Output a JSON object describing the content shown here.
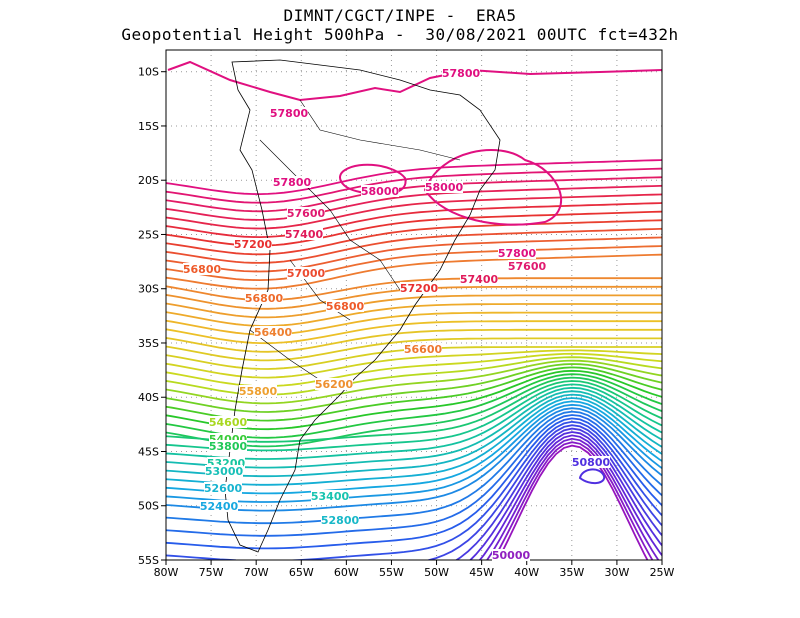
{
  "title": {
    "line1": "DIMNT/CGCT/INPE -  ERA5",
    "line2": "Geopotential Height 500hPa -  30/08/2021 00UTC fct=432h"
  },
  "axes": {
    "lon_ticks": [
      "80W",
      "75W",
      "70W",
      "65W",
      "60W",
      "55W",
      "50W",
      "45W",
      "40W",
      "35W",
      "30W",
      "25W"
    ],
    "lat_ticks": [
      "10S",
      "15S",
      "20S",
      "25S",
      "30S",
      "35S",
      "40S",
      "45S",
      "50S",
      "55S"
    ],
    "lon_range": [
      -80,
      -25
    ],
    "lat_range": [
      -55,
      -8
    ],
    "grid": "dotted"
  },
  "contour_labels": [
    {
      "text": "57800",
      "color": "#e01080"
    },
    {
      "text": "57800",
      "color": "#e01080"
    },
    {
      "text": "57800",
      "color": "#e01080"
    },
    {
      "text": "58000",
      "color": "#e01080"
    },
    {
      "text": "58000",
      "color": "#e01080"
    },
    {
      "text": "57600",
      "color": "#e01a70"
    },
    {
      "text": "57400",
      "color": "#e01a5a"
    },
    {
      "text": "57200",
      "color": "#e83030"
    },
    {
      "text": "57000",
      "color": "#ec4a30"
    },
    {
      "text": "56800",
      "color": "#ee5a2a"
    },
    {
      "text": "56800",
      "color": "#ee6a2a"
    },
    {
      "text": "56400",
      "color": "#ee8030"
    },
    {
      "text": "55800",
      "color": "#eea030"
    },
    {
      "text": "54600",
      "color": "#a8d820"
    },
    {
      "text": "54000",
      "color": "#38cc38"
    },
    {
      "text": "53800",
      "color": "#20c858"
    },
    {
      "text": "53200",
      "color": "#18c6a0"
    },
    {
      "text": "53000",
      "color": "#18c0b8"
    },
    {
      "text": "52600",
      "color": "#18b4d0"
    },
    {
      "text": "52400",
      "color": "#18a8e0"
    },
    {
      "text": "53400",
      "color": "#18c4b0"
    },
    {
      "text": "52800",
      "color": "#18b8c8"
    },
    {
      "text": "57800",
      "color": "#e01080"
    },
    {
      "text": "57600",
      "color": "#e01a70"
    },
    {
      "text": "57400",
      "color": "#e01a5a"
    },
    {
      "text": "57200",
      "color": "#e83030"
    },
    {
      "text": "56800",
      "color": "#ee5a2a"
    },
    {
      "text": "56600",
      "color": "#ee7830"
    },
    {
      "text": "56200",
      "color": "#ee9030"
    },
    {
      "text": "50800",
      "color": "#5030e0"
    },
    {
      "text": "50000",
      "color": "#9020c0"
    }
  ]
}
